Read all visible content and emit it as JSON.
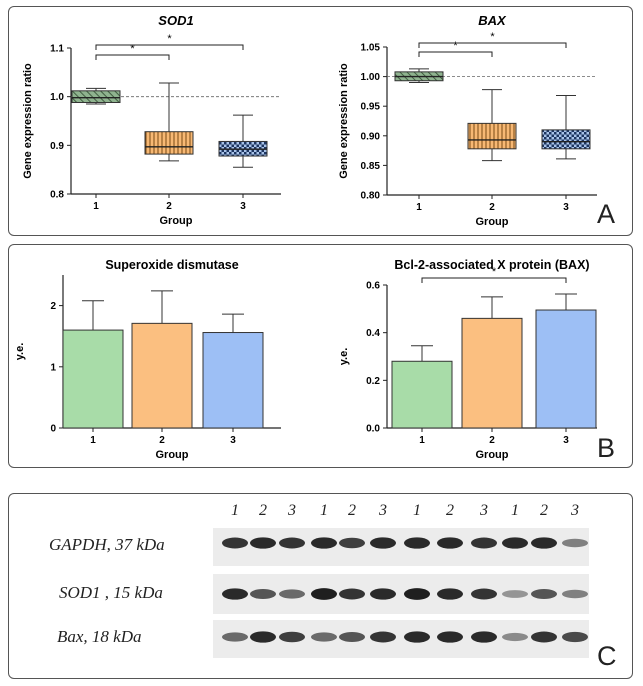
{
  "panels": {
    "a": "A",
    "b": "B",
    "c": "C"
  },
  "chart_data": [
    {
      "type": "box",
      "id": "sod1-gene",
      "title": "SOD1",
      "xlabel": "Group",
      "ylabel": "Gene expression ratio",
      "categories": [
        "1",
        "2",
        "3"
      ],
      "ylim": [
        0.8,
        1.1
      ],
      "yticks": [
        0.8,
        0.9,
        1.0,
        1.1
      ],
      "ytick_labels": [
        "0.8",
        "0.9",
        "1.0",
        "1.1"
      ],
      "reference_line": 1.0,
      "boxes": [
        {
          "group": "1",
          "min": 0.985,
          "q1": 0.988,
          "median": 0.998,
          "q3": 1.012,
          "max": 1.017
        },
        {
          "group": "2",
          "min": 0.868,
          "q1": 0.882,
          "median": 0.897,
          "q3": 0.928,
          "max": 1.028
        },
        {
          "group": "3",
          "min": 0.855,
          "q1": 0.878,
          "median": 0.892,
          "q3": 0.908,
          "max": 0.962
        }
      ],
      "significance": [
        {
          "from": "1",
          "to": "2",
          "label": "*"
        },
        {
          "from": "1",
          "to": "3",
          "label": "*"
        }
      ]
    },
    {
      "type": "box",
      "id": "bax-gene",
      "title": "BAX",
      "xlabel": "Group",
      "ylabel": "Gene expression ratio",
      "categories": [
        "1",
        "2",
        "3"
      ],
      "ylim": [
        0.8,
        1.05
      ],
      "yticks": [
        0.8,
        0.85,
        0.9,
        0.95,
        1.0,
        1.05
      ],
      "ytick_labels": [
        "0.80",
        "0.85",
        "0.90",
        "0.95",
        "1.00",
        "1.05"
      ],
      "reference_line": 1.0,
      "boxes": [
        {
          "group": "1",
          "min": 0.99,
          "q1": 0.993,
          "median": 1.0,
          "q3": 1.008,
          "max": 1.013
        },
        {
          "group": "2",
          "min": 0.858,
          "q1": 0.878,
          "median": 0.893,
          "q3": 0.921,
          "max": 0.978
        },
        {
          "group": "3",
          "min": 0.861,
          "q1": 0.878,
          "median": 0.89,
          "q3": 0.91,
          "max": 0.968
        }
      ],
      "significance": [
        {
          "from": "1",
          "to": "2",
          "label": "*"
        },
        {
          "from": "1",
          "to": "3",
          "label": "*"
        }
      ]
    },
    {
      "type": "bar",
      "id": "sod-protein",
      "title": "Superoxide dismutase",
      "xlabel": "Group",
      "ylabel": "y.e.",
      "categories": [
        "1",
        "2",
        "3"
      ],
      "values": [
        1.6,
        1.71,
        1.56
      ],
      "errors": [
        0.48,
        0.53,
        0.3
      ],
      "ylim": [
        0,
        2.5
      ],
      "yticks": [
        0,
        1,
        2
      ],
      "ytick_labels": [
        "0",
        "1",
        "2"
      ],
      "colors": [
        "#a8dca8",
        "#fbbf80",
        "#9dbff5"
      ],
      "significance": []
    },
    {
      "type": "bar",
      "id": "bax-protein",
      "title": "Bcl-2-associated X protein (BAX)",
      "xlabel": "Group",
      "ylabel": "y.e.",
      "categories": [
        "1",
        "2",
        "3"
      ],
      "values": [
        0.28,
        0.46,
        0.495
      ],
      "errors": [
        0.065,
        0.09,
        0.067
      ],
      "ylim": [
        0,
        0.6
      ],
      "yticks": [
        0,
        0.2,
        0.4,
        0.6
      ],
      "ytick_labels": [
        "0.0",
        "0.2",
        "0.4",
        "0.6"
      ],
      "colors": [
        "#a8dca8",
        "#fbbf80",
        "#9dbff5"
      ],
      "significance": [
        {
          "from": "1",
          "to": "3",
          "label": "*"
        }
      ]
    }
  ],
  "blot": {
    "lanes": [
      "1",
      "2",
      "3",
      "1",
      "2",
      "3",
      "1",
      "2",
      "3",
      "1",
      "2",
      "3"
    ],
    "rows": [
      {
        "label": "GAPDH, 37 kDa",
        "intensity": [
          0.85,
          0.9,
          0.85,
          0.9,
          0.8,
          0.9,
          0.9,
          0.9,
          0.85,
          0.9,
          0.9,
          0.5
        ]
      },
      {
        "label": "SOD1 , 15 kDa",
        "intensity": [
          0.9,
          0.7,
          0.6,
          0.95,
          0.85,
          0.9,
          0.95,
          0.9,
          0.85,
          0.4,
          0.7,
          0.5
        ]
      },
      {
        "label": "Bax, 18 kDa",
        "intensity": [
          0.6,
          0.9,
          0.8,
          0.6,
          0.7,
          0.85,
          0.9,
          0.9,
          0.9,
          0.45,
          0.85,
          0.75
        ]
      }
    ]
  }
}
